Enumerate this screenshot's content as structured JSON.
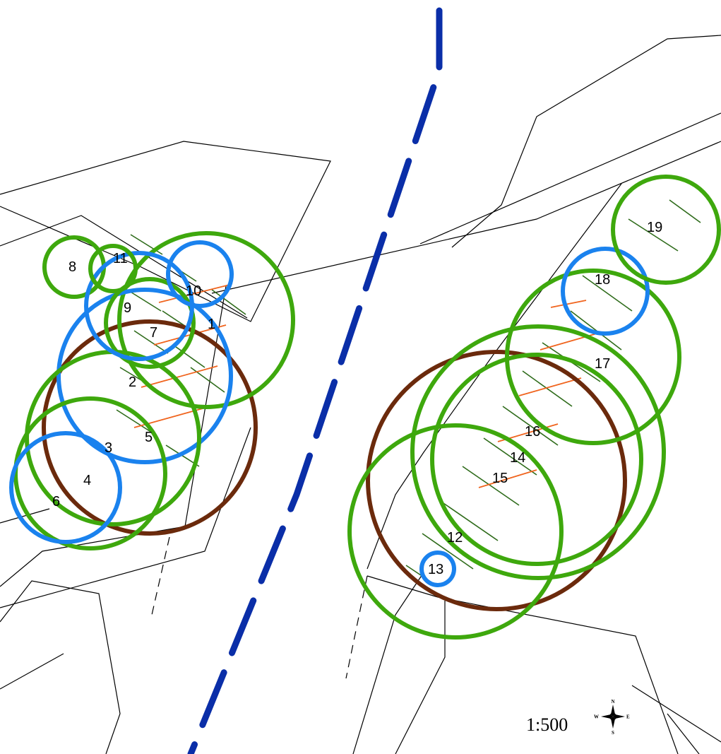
{
  "map": {
    "scale_label": "1:500",
    "compass": {
      "north": "N",
      "south": "S",
      "east": "E",
      "west": "W"
    },
    "colors": {
      "background": "#ffffff",
      "parcel_line": "#000000",
      "road_centerline": "#0a2ea8",
      "canopy_green": "#3ea80d",
      "canopy_blue": "#1a82ee",
      "canopy_brown": "#6b2a0c",
      "hatch_green": "#2e6b1a",
      "hatch_orange": "#f0641e"
    },
    "circle_labels": [
      "1",
      "2",
      "3",
      "4",
      "5",
      "6",
      "7",
      "8",
      "9",
      "10",
      "11",
      "12",
      "13",
      "14",
      "15",
      "16",
      "17",
      "18",
      "19"
    ]
  }
}
